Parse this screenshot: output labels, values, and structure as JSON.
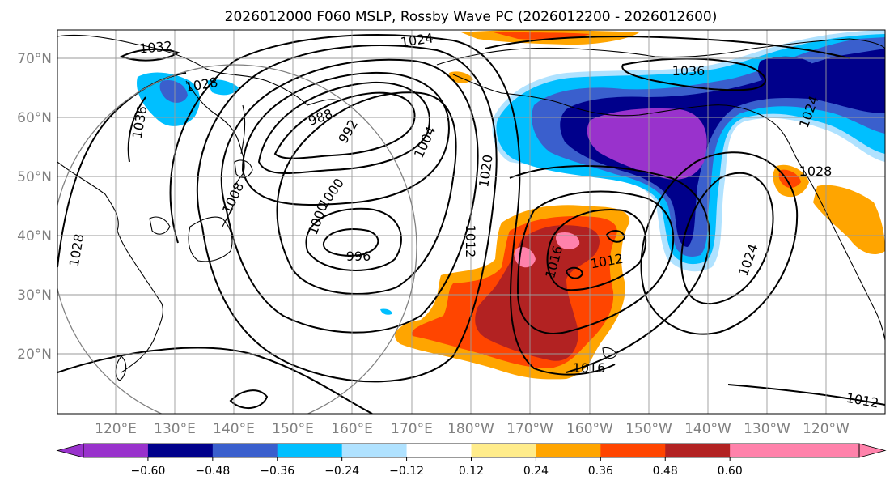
{
  "title": "2026012000 F060 MSLP, Rossby Wave PC (2026012200 - 2026012600)",
  "lat_labels": [
    "70°N",
    "60°N",
    "50°N",
    "40°N",
    "30°N",
    "20°N"
  ],
  "lon_labels": [
    "120°E",
    "130°E",
    "140°E",
    "150°E",
    "160°E",
    "170°E",
    "180°W",
    "170°W",
    "160°W",
    "150°W",
    "140°W",
    "130°W",
    "120°W"
  ],
  "isobar_labels": [
    "1032",
    "1024",
    "1028",
    "1036",
    "988",
    "992",
    "1004",
    "1020",
    "1008",
    "1000",
    "1000",
    "996",
    "1028",
    "1012",
    "1016",
    "1012",
    "1036",
    "1024",
    "1028",
    "1016",
    "1012",
    "1024"
  ],
  "colorbar": {
    "tick_labels": [
      "−0.60",
      "−0.48",
      "−0.36",
      "−0.24",
      "−0.12",
      "0.12",
      "0.24",
      "0.36",
      "0.48",
      "0.60"
    ],
    "colors": [
      "#9932cc",
      "#00008b",
      "#3a5fcd",
      "#00bfff",
      "#b0e2ff",
      "#ffffff",
      "#ffec8b",
      "#ffa500",
      "#ff4500",
      "#b22222",
      "#ff82ab",
      "#ff82ab"
    ],
    "lower_extend_color": "#9932cc",
    "upper_extend_color": "#ff82ab"
  }
}
